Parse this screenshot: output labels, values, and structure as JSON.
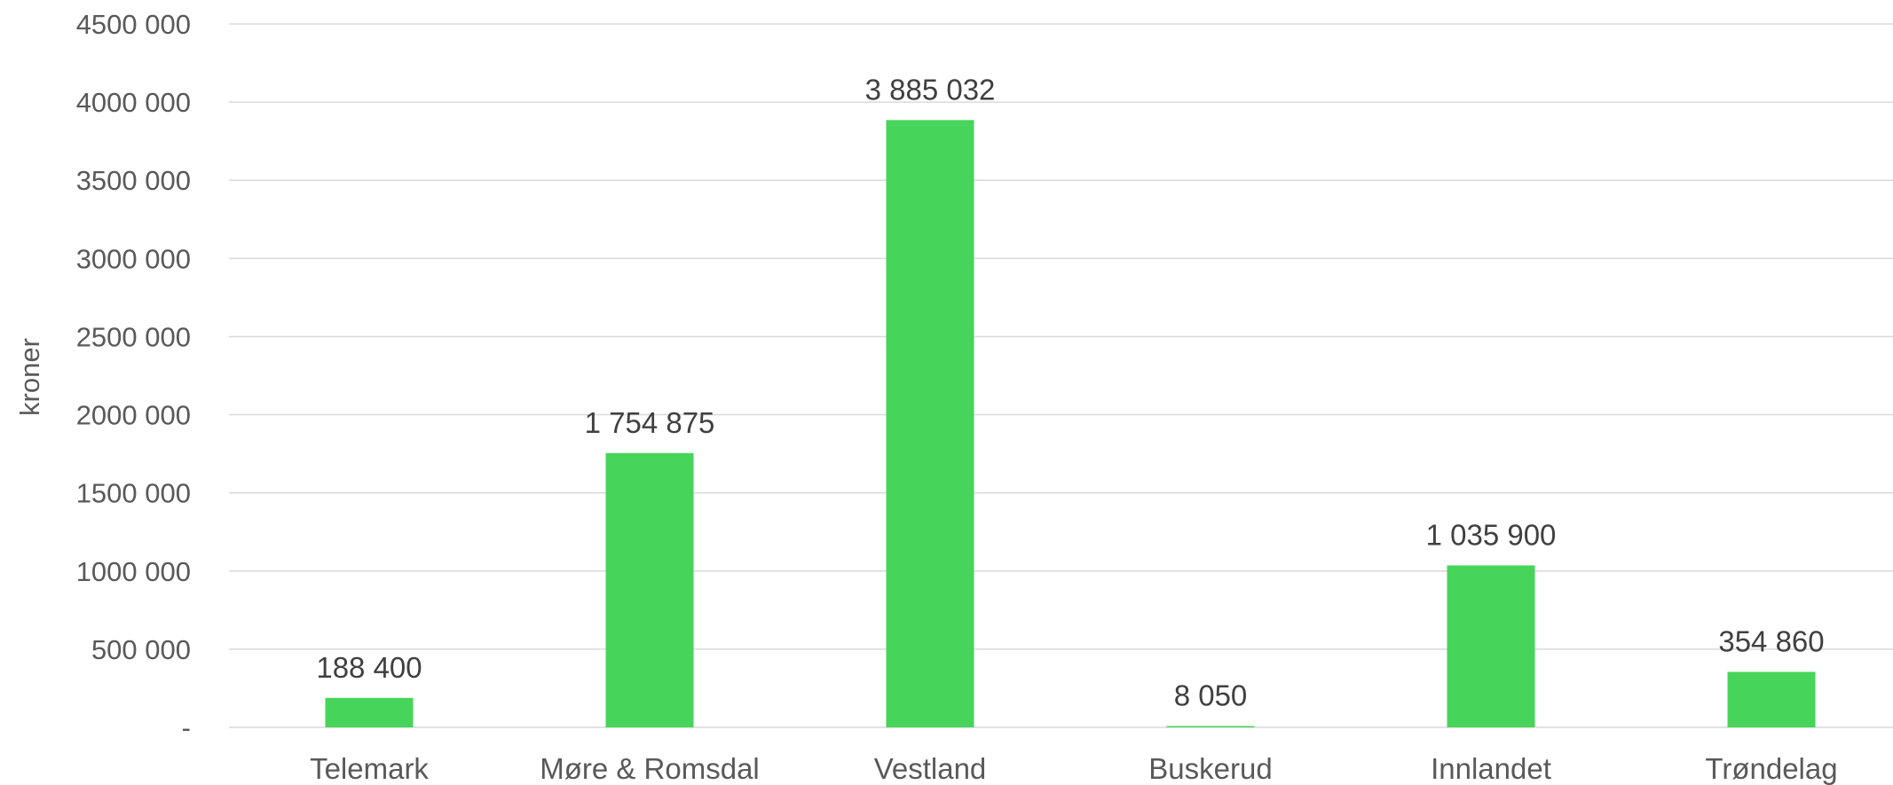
{
  "chart_data": {
    "type": "bar",
    "ylabel": "kroner",
    "xlabel": "",
    "ylim": [
      0,
      4500000
    ],
    "grid": true,
    "categories": [
      "Telemark",
      "Møre & Romsdal",
      "Vestland",
      "Buskerud",
      "Innlandet",
      "Trøndelag"
    ],
    "values": [
      188400,
      1754875,
      3885032,
      8050,
      1035900,
      354860
    ],
    "data_labels": [
      "188 400",
      "1 754 875",
      "3 885 032",
      "8 050",
      "1 035 900",
      "354 860"
    ],
    "ytick_labels": [
      "-",
      "500 000",
      "1000 000",
      "1500 000",
      "2000 000",
      "2500 000",
      "3000 000",
      "3500 000",
      "4000 000",
      "4500 000"
    ],
    "ytick_values": [
      0,
      500000,
      1000000,
      1500000,
      2000000,
      2500000,
      3000000,
      3500000,
      4000000,
      4500000
    ],
    "colors": {
      "bar": "#47d45a",
      "grid": "#d9d9d9"
    }
  }
}
